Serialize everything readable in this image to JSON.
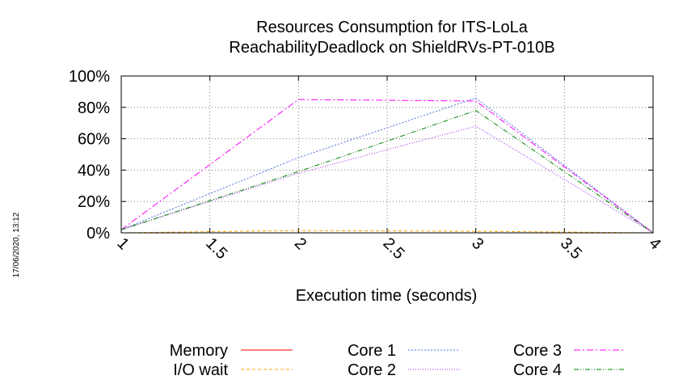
{
  "chart_data": {
    "type": "line",
    "title": "Resources Consumption for ITS-LoLa",
    "subtitle": "ReachabilityDeadlock on ShieldRVs-PT-010B",
    "xlabel": "Execution time (seconds)",
    "ylabel": "",
    "xlim": [
      1,
      4
    ],
    "ylim": [
      0,
      100
    ],
    "x_ticks": [
      "1",
      "1.5",
      "2",
      "2.5",
      "3",
      "3.5",
      "4"
    ],
    "y_ticks": [
      "0%",
      "20%",
      "40%",
      "60%",
      "80%",
      "100%"
    ],
    "grid": true,
    "legend_position": "bottom",
    "timestamp": "17/06/2020, 13:12",
    "series": [
      {
        "name": "Memory",
        "color": "#ff0000",
        "dash": "solid",
        "x": [
          1,
          2,
          3,
          4
        ],
        "values": [
          0,
          0,
          0,
          0
        ]
      },
      {
        "name": "I/O wait",
        "color": "#ffa500",
        "dash": "dashed",
        "x": [
          1,
          2,
          3,
          4
        ],
        "values": [
          0,
          1.5,
          1,
          0
        ]
      },
      {
        "name": "Core 1",
        "color": "#4f6fe0",
        "dash": "dotted-fine",
        "x": [
          1,
          2,
          3,
          4
        ],
        "values": [
          2,
          48,
          86,
          0
        ]
      },
      {
        "name": "Core 2",
        "color": "#a020f0",
        "dash": "dotted",
        "x": [
          1,
          2,
          3,
          4
        ],
        "values": [
          2,
          38,
          68,
          0
        ]
      },
      {
        "name": "Core 3",
        "color": "#ff00ff",
        "dash": "dash-dot",
        "x": [
          1,
          2,
          3,
          4
        ],
        "values": [
          2,
          85,
          84,
          0
        ]
      },
      {
        "name": "Core 4",
        "color": "#008000",
        "dash": "dash-dot-dot",
        "x": [
          1,
          2,
          3,
          4
        ],
        "values": [
          2,
          39,
          78,
          0
        ]
      }
    ]
  }
}
